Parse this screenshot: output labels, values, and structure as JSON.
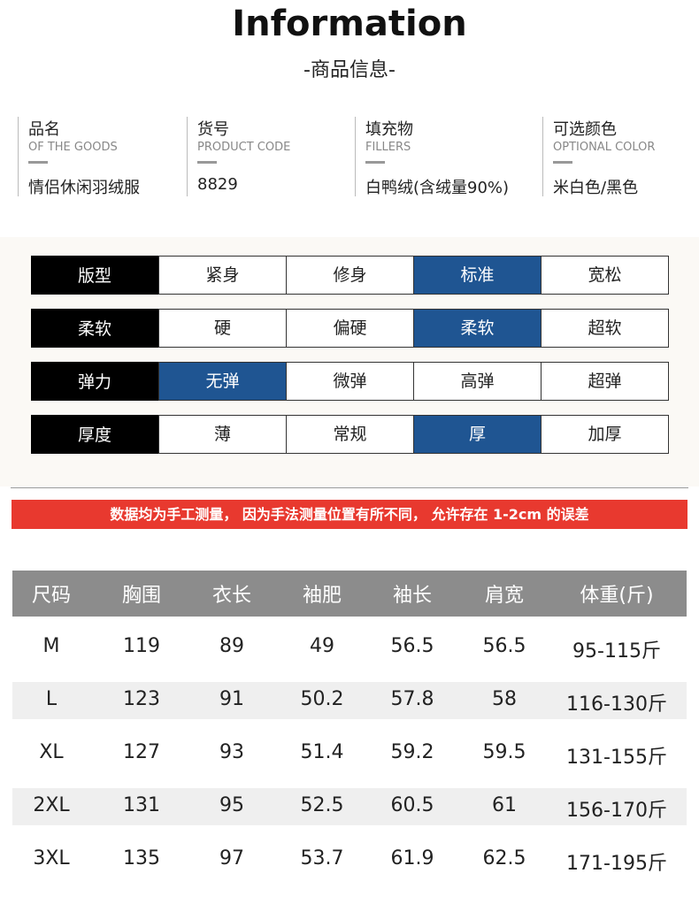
{
  "header": {
    "title": "Information",
    "subtitle": "-商品信息-"
  },
  "info": [
    {
      "label": "品名",
      "en": "OF THE GOODS",
      "value": "情侣休闲羽绒服"
    },
    {
      "label": "货号",
      "en": "PRODUCT CODE",
      "value": "8829"
    },
    {
      "label": "填充物",
      "en": "FILLERS",
      "value": "白鸭绒(含绒量90%)"
    },
    {
      "label": "可选颜色",
      "en": "OPTIONAL COLOR",
      "value": "米白色/黑色"
    }
  ],
  "attributes": [
    {
      "name": "版型",
      "options": [
        "紧身",
        "修身",
        "标准",
        "宽松"
      ],
      "selected": 2
    },
    {
      "name": "柔软",
      "options": [
        "硬",
        "偏硬",
        "柔软",
        "超软"
      ],
      "selected": 2
    },
    {
      "name": "弹力",
      "options": [
        "无弹",
        "微弹",
        "高弹",
        "超弹"
      ],
      "selected": 0
    },
    {
      "name": "厚度",
      "options": [
        "薄",
        "常规",
        "厚",
        "加厚"
      ],
      "selected": 2
    }
  ],
  "notice": "数据均为手工测量， 因为手法测量位置有所不同， 允许存在 1-2cm 的误差",
  "table": {
    "header": [
      "尺码",
      "胸围",
      "衣长",
      "袖肥",
      "袖长",
      "肩宽",
      "体重(斤)"
    ],
    "rows": [
      [
        "M",
        119,
        89,
        49,
        56.5,
        56.5,
        "95-115斤"
      ],
      [
        "L",
        123,
        91,
        50.2,
        57.8,
        58,
        "116-130斤"
      ],
      [
        "XL",
        127,
        93,
        51.4,
        59.2,
        59.5,
        "131-155斤"
      ],
      [
        "2XL",
        131,
        95,
        52.5,
        60.5,
        61,
        "156-170斤"
      ],
      [
        "3XL",
        135,
        97,
        53.7,
        61.9,
        62.5,
        "171-195斤"
      ]
    ]
  }
}
